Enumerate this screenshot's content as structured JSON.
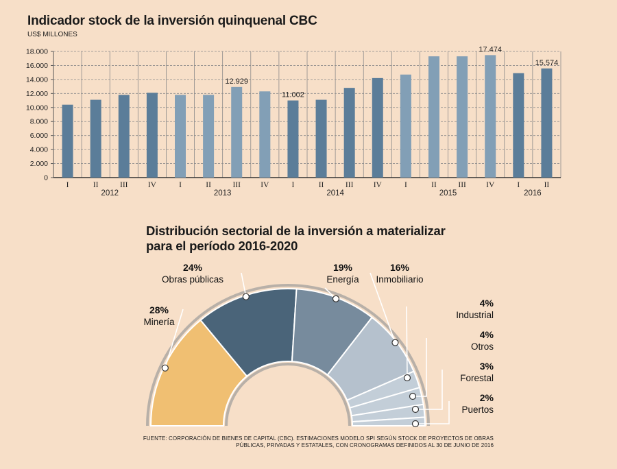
{
  "bar_section": {
    "title": "Indicador stock de la inversión quinquenal CBC",
    "unit_label": "US$ MILLONES"
  },
  "pie_section": {
    "title_line1": "Distribución sectorial de la inversión a materializar",
    "title_line2": "para el período 2016-2020"
  },
  "source": {
    "line1": "FUENTE: CORPORACIÓN DE BIENES DE CAPITAL (CBC). ESTIMACIONES MODELO SPI SEGÚN STOCK DE PROYECTOS DE OBRAS",
    "line2": "PÚBLICAS, PRIVADAS Y ESTATALES, CON CRONOGRAMAS DEFINIDOS AL 30 DE JUNIO DE 2016"
  },
  "colors": {
    "background": "#f7dfc8",
    "bar_dark": "#5b7d99",
    "bar_light": "#829fb6",
    "grid": "#8a8a8a"
  },
  "chart_data": [
    {
      "type": "bar",
      "title": "Indicador stock de la inversión quinquenal CBC",
      "ylabel": "US$ MILLONES",
      "ylim": [
        0,
        18000
      ],
      "yticks": [
        "0",
        "2.000",
        "4.000",
        "6.000",
        "8.000",
        "10.000",
        "12.000",
        "14.000",
        "16.000",
        "18.000"
      ],
      "categories": [
        "I",
        "II",
        "III",
        "IV",
        "I",
        "II",
        "III",
        "IV",
        "I",
        "II",
        "III",
        "IV",
        "I",
        "II",
        "III",
        "IV",
        "I",
        "II"
      ],
      "years": [
        {
          "label": "2012",
          "start": 0,
          "end": 3
        },
        {
          "label": "2013",
          "start": 4,
          "end": 7
        },
        {
          "label": "2014",
          "start": 8,
          "end": 11
        },
        {
          "label": "2015",
          "start": 12,
          "end": 15
        },
        {
          "label": "2016",
          "start": 16,
          "end": 17
        }
      ],
      "values": [
        10400,
        11100,
        11800,
        12100,
        11800,
        11800,
        12929,
        12300,
        11002,
        11100,
        12800,
        14200,
        14700,
        17300,
        17300,
        17474,
        14900,
        15574
      ],
      "shade": [
        "dark",
        "dark",
        "dark",
        "dark",
        "light",
        "light",
        "light",
        "light",
        "dark",
        "dark",
        "dark",
        "dark",
        "light",
        "light",
        "light",
        "light",
        "dark",
        "dark"
      ],
      "data_labels": [
        {
          "index": 6,
          "text": "12.929"
        },
        {
          "index": 8,
          "text": "11.002"
        },
        {
          "index": 15,
          "text": "17.474"
        },
        {
          "index": 17,
          "text": "15.574"
        }
      ]
    },
    {
      "type": "pie",
      "title": "Distribución sectorial de la inversión a materializar para el período 2016-2020",
      "slices": [
        {
          "label": "Minería",
          "pct": "28%",
          "value": 28,
          "color": "#f0bf72"
        },
        {
          "label": "Obras públicas",
          "pct": "24%",
          "value": 24,
          "color": "#4a6479"
        },
        {
          "label": "Energía",
          "pct": "19%",
          "value": 19,
          "color": "#778b9d"
        },
        {
          "label": "Inmobiliario",
          "pct": "16%",
          "value": 16,
          "color": "#b5c1cd"
        },
        {
          "label": "Industrial",
          "pct": "4%",
          "value": 4,
          "color": "#c3ced8"
        },
        {
          "label": "Otros",
          "pct": "4%",
          "value": 4,
          "color": "#c3ced8"
        },
        {
          "label": "Forestal",
          "pct": "3%",
          "value": 3,
          "color": "#c3ced8"
        },
        {
          "label": "Puertos",
          "pct": "2%",
          "value": 2,
          "color": "#c3ced8"
        }
      ]
    }
  ]
}
